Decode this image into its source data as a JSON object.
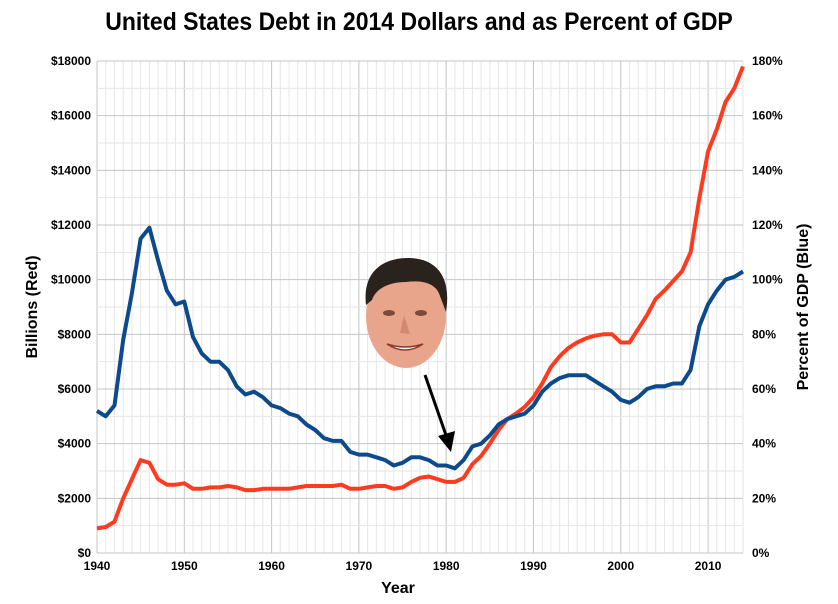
{
  "chart_data": {
    "type": "line",
    "title": "United States Debt in 2014 Dollars and as Percent of GDP",
    "xlabel": "Year",
    "ylabel_left": "Billions (Red)",
    "ylabel_right": "Percent of GDP (Blue)",
    "xlim": [
      1940,
      2014
    ],
    "ylim_left": [
      0,
      18000
    ],
    "ylim_right": [
      0,
      180
    ],
    "grid": true,
    "x_ticks": [
      "1940",
      "1950",
      "1960",
      "1970",
      "1980",
      "1990",
      "2000",
      "2010"
    ],
    "y_left_ticks": [
      "$0",
      "$2000",
      "$4000",
      "$6000",
      "$8000",
      "$10000",
      "$12000",
      "$14000",
      "$16000",
      "$18000"
    ],
    "y_right_ticks": [
      "0%",
      "20%",
      "40%",
      "60%",
      "80%",
      "100%",
      "120%",
      "140%",
      "160%",
      "180%"
    ],
    "x": [
      1940,
      1941,
      1942,
      1943,
      1944,
      1945,
      1946,
      1947,
      1948,
      1949,
      1950,
      1951,
      1952,
      1953,
      1954,
      1955,
      1956,
      1957,
      1958,
      1959,
      1960,
      1961,
      1962,
      1963,
      1964,
      1965,
      1966,
      1967,
      1968,
      1969,
      1970,
      1971,
      1972,
      1973,
      1974,
      1975,
      1976,
      1977,
      1978,
      1979,
      1980,
      1981,
      1982,
      1983,
      1984,
      1985,
      1986,
      1987,
      1988,
      1989,
      1990,
      1991,
      1992,
      1993,
      1994,
      1995,
      1996,
      1997,
      1998,
      1999,
      2000,
      2001,
      2002,
      2003,
      2004,
      2005,
      2006,
      2007,
      2008,
      2009,
      2010,
      2011,
      2012,
      2013,
      2014
    ],
    "series": [
      {
        "axis": "left",
        "color": "#ff3b1f",
        "values": [
          900,
          950,
          1150,
          2000,
          2700,
          3400,
          3300,
          2700,
          2500,
          2500,
          2550,
          2350,
          2350,
          2400,
          2400,
          2450,
          2400,
          2300,
          2300,
          2350,
          2350,
          2350,
          2350,
          2400,
          2450,
          2450,
          2450,
          2450,
          2500,
          2350,
          2350,
          2400,
          2450,
          2450,
          2350,
          2400,
          2600,
          2750,
          2800,
          2700,
          2600,
          2600,
          2750,
          3250,
          3550,
          4000,
          4500,
          4900,
          5100,
          5350,
          5700,
          6200,
          6800,
          7200,
          7500,
          7700,
          7850,
          7950,
          8000,
          8000,
          7700,
          7700,
          8200,
          8700,
          9300,
          9600,
          9950,
          10300,
          11000,
          13000,
          14700,
          15500,
          16500,
          17000,
          17800
        ]
      },
      {
        "axis": "right",
        "color": "#0d4a8c",
        "values": [
          52,
          50,
          54,
          78,
          95,
          115,
          119,
          107,
          96,
          91,
          92,
          79,
          73,
          70,
          70,
          67,
          61,
          58,
          59,
          57,
          54,
          53,
          51,
          50,
          47,
          45,
          42,
          41,
          41,
          37,
          36,
          36,
          35,
          34,
          32,
          33,
          35,
          35,
          34,
          32,
          32,
          31,
          34,
          39,
          40,
          43,
          47,
          49,
          50,
          51,
          54,
          59,
          62,
          64,
          65,
          65,
          65,
          63,
          61,
          59,
          56,
          55,
          57,
          60,
          61,
          61,
          62,
          62,
          67,
          83,
          91,
          96,
          100,
          101,
          103
        ]
      }
    ]
  },
  "annotation": {
    "image": "ronald-reagan-face",
    "arrow_points_to_year": 1981
  }
}
